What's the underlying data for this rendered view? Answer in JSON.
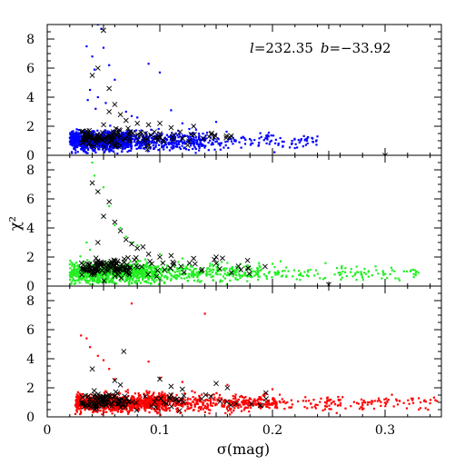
{
  "chart_data": {
    "type": "scatter",
    "annotation": "l=232.35  b=−33.92",
    "annotation_parts": {
      "l_label": "l",
      "l_value": "=232.35",
      "b_label": "b",
      "b_value": "=−33.92"
    },
    "xlabel": "σ(mag)",
    "ylabel": "χ²",
    "xlim": [
      0,
      0.35
    ],
    "xticks": [
      0,
      0.1,
      0.2,
      0.3
    ],
    "xtick_labels": [
      "0",
      "0.1",
      "0.2",
      "0.3"
    ],
    "shared_x": true,
    "grid": false,
    "panels": [
      {
        "position": "top",
        "ylim": [
          0,
          9
        ],
        "yticks": [
          0,
          2,
          4,
          6,
          8
        ],
        "ytick_labels": [
          "0",
          "2",
          "4",
          "6",
          "8"
        ],
        "series": [
          {
            "marker": "dot",
            "color": "#0000ff",
            "band": {
              "x_min": 0.02,
              "x_max": 0.24,
              "y_center": 1.0,
              "y_spread": 0.35,
              "n": 1300
            },
            "outliers": [
              [
                0.035,
                7.5
              ],
              [
                0.04,
                6.8
              ],
              [
                0.042,
                5.9
              ],
              [
                0.045,
                9.0
              ],
              [
                0.048,
                8.7
              ],
              [
                0.05,
                7.4
              ],
              [
                0.055,
                6.2
              ],
              [
                0.06,
                5.2
              ],
              [
                0.038,
                4.5
              ],
              [
                0.036,
                3.8
              ],
              [
                0.043,
                3.2
              ],
              [
                0.07,
                3.0
              ],
              [
                0.075,
                2.7
              ],
              [
                0.08,
                2.6
              ],
              [
                0.09,
                6.3
              ],
              [
                0.1,
                5.7
              ],
              [
                0.11,
                3.1
              ],
              [
                0.12,
                2.2
              ],
              [
                0.13,
                2.0
              ],
              [
                0.15,
                2.3
              ],
              [
                0.045,
                4.0
              ],
              [
                0.052,
                3.6
              ]
            ]
          },
          {
            "marker": "x",
            "color": "#000000",
            "band": {
              "x_min": 0.03,
              "x_max": 0.17,
              "y_center": 1.2,
              "y_spread": 0.3,
              "n": 130
            },
            "outliers": [
              [
                0.05,
                8.6
              ],
              [
                0.045,
                6.0
              ],
              [
                0.04,
                5.5
              ],
              [
                0.055,
                4.6
              ],
              [
                0.06,
                3.5
              ],
              [
                0.055,
                3.0
              ],
              [
                0.065,
                2.8
              ],
              [
                0.07,
                2.4
              ],
              [
                0.08,
                2.2
              ],
              [
                0.09,
                2.1
              ],
              [
                0.1,
                2.2
              ],
              [
                0.11,
                1.9
              ],
              [
                0.13,
                2.0
              ],
              [
                0.3,
                0.0
              ]
            ]
          }
        ]
      },
      {
        "position": "middle",
        "ylim": [
          0,
          9
        ],
        "yticks": [
          0,
          2,
          4,
          6,
          8
        ],
        "ytick_labels": [
          "0",
          "2",
          "4",
          "6",
          "8"
        ],
        "series": [
          {
            "marker": "dot",
            "color": "#22ee22",
            "band": {
              "x_min": 0.02,
              "x_max": 0.33,
              "y_center": 0.9,
              "y_spread": 0.35,
              "n": 1200
            },
            "outliers": [
              [
                0.04,
                8.5
              ],
              [
                0.042,
                7.6
              ],
              [
                0.05,
                6.8
              ],
              [
                0.045,
                6.5
              ],
              [
                0.055,
                5.5
              ],
              [
                0.05,
                4.8
              ],
              [
                0.06,
                4.2
              ],
              [
                0.065,
                4.0
              ],
              [
                0.07,
                3.4
              ],
              [
                0.075,
                3.0
              ],
              [
                0.08,
                2.8
              ],
              [
                0.035,
                3.0
              ],
              [
                0.038,
                2.5
              ],
              [
                0.1,
                2.2
              ],
              [
                0.12,
                1.9
              ]
            ]
          },
          {
            "marker": "x",
            "color": "#000000",
            "band": {
              "x_min": 0.03,
              "x_max": 0.2,
              "y_center": 1.3,
              "y_spread": 0.35,
              "n": 140
            },
            "outliers": [
              [
                0.04,
                7.1
              ],
              [
                0.045,
                6.5
              ],
              [
                0.055,
                5.8
              ],
              [
                0.05,
                4.8
              ],
              [
                0.06,
                4.4
              ],
              [
                0.065,
                3.8
              ],
              [
                0.045,
                3.0
              ],
              [
                0.07,
                3.2
              ],
              [
                0.075,
                2.9
              ],
              [
                0.08,
                2.6
              ],
              [
                0.085,
                2.7
              ],
              [
                0.09,
                2.2
              ],
              [
                0.1,
                2.0
              ],
              [
                0.11,
                2.1
              ],
              [
                0.13,
                1.9
              ],
              [
                0.15,
                2.0
              ],
              [
                0.25,
                0.1
              ]
            ]
          }
        ]
      },
      {
        "position": "bottom",
        "ylim": [
          0,
          9
        ],
        "yticks": [
          0,
          2,
          4,
          6,
          8
        ],
        "ytick_labels": [
          "0",
          "2",
          "4",
          "6",
          "8"
        ],
        "series": [
          {
            "marker": "dot",
            "color": "#ff0000",
            "band": {
              "x_min": 0.025,
              "x_max": 0.35,
              "y_center": 0.95,
              "y_spread": 0.3,
              "n": 1400
            },
            "outliers": [
              [
                0.03,
                5.6
              ],
              [
                0.035,
                5.4
              ],
              [
                0.038,
                4.8
              ],
              [
                0.045,
                4.2
              ],
              [
                0.05,
                3.9
              ],
              [
                0.055,
                3.3
              ],
              [
                0.06,
                2.6
              ],
              [
                0.075,
                7.8
              ],
              [
                0.14,
                7.1
              ],
              [
                0.09,
                3.8
              ],
              [
                0.1,
                2.7
              ],
              [
                0.12,
                2.4
              ],
              [
                0.16,
                2.2
              ],
              [
                0.2,
                1.9
              ]
            ]
          },
          {
            "marker": "x",
            "color": "#000000",
            "band": {
              "x_min": 0.03,
              "x_max": 0.2,
              "y_center": 1.1,
              "y_spread": 0.3,
              "n": 130
            },
            "outliers": [
              [
                0.068,
                4.5
              ],
              [
                0.04,
                3.3
              ],
              [
                0.06,
                2.5
              ],
              [
                0.065,
                2.2
              ],
              [
                0.1,
                2.6
              ],
              [
                0.11,
                2.1
              ],
              [
                0.15,
                2.3
              ],
              [
                0.16,
                2.0
              ],
              [
                0.12,
                1.9
              ]
            ]
          }
        ]
      }
    ]
  }
}
